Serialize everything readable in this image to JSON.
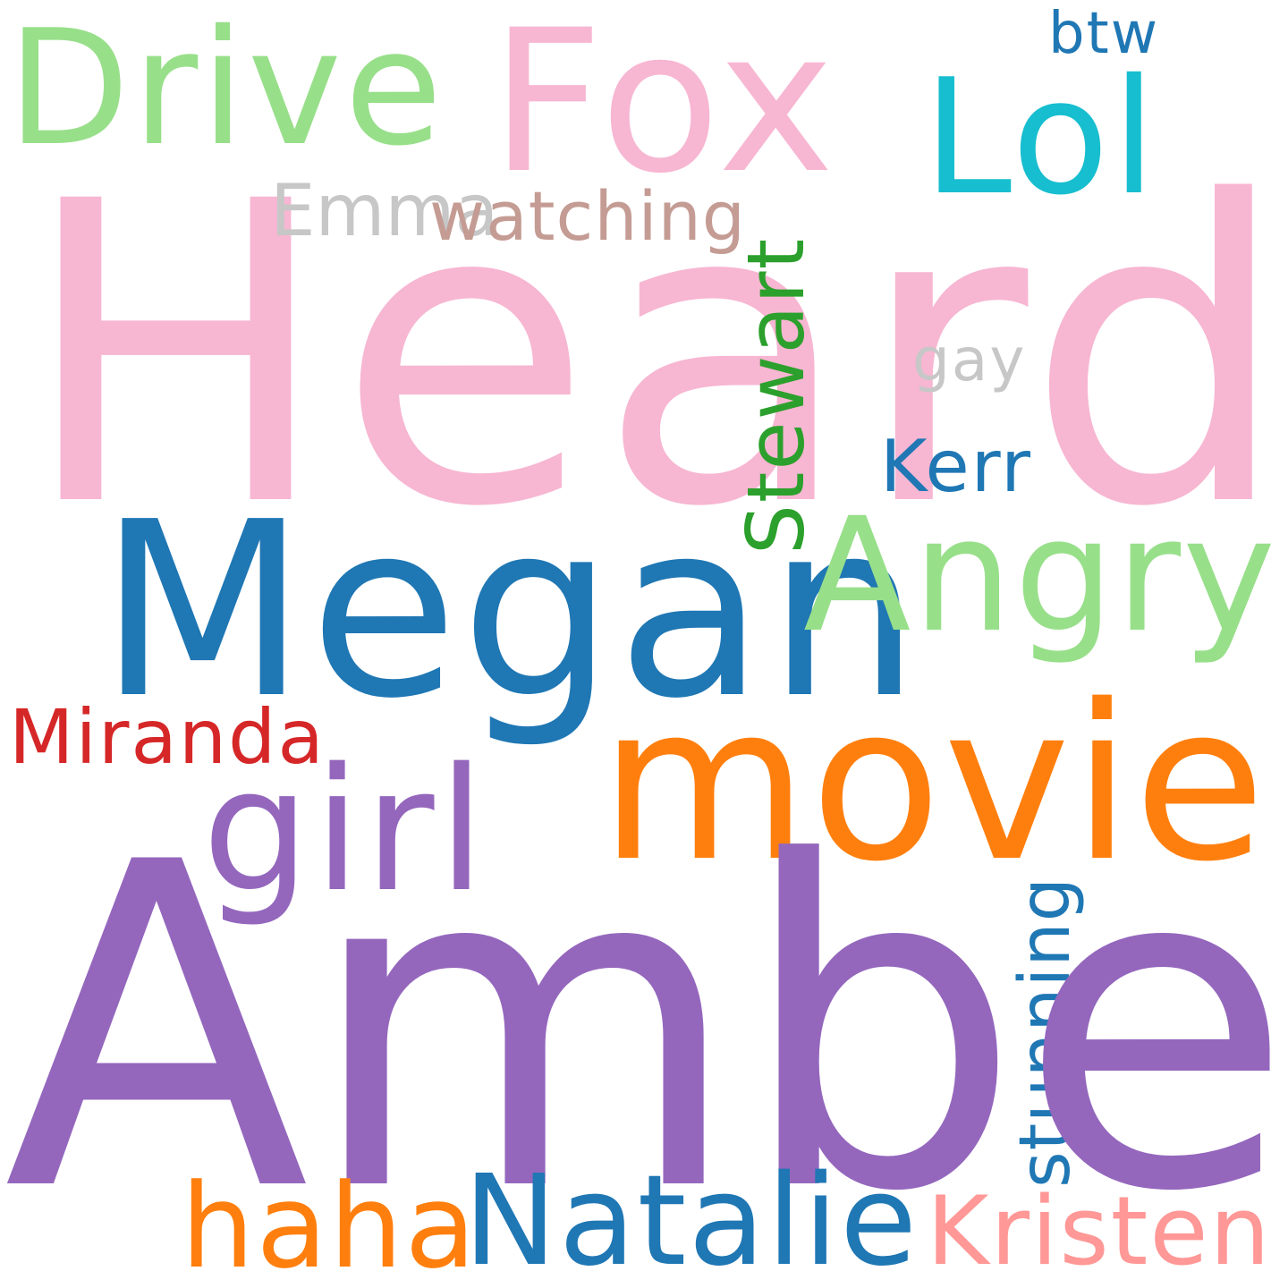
{
  "words": {
    "heard": {
      "text": "Heard",
      "color": "#f7b6d2"
    },
    "amber": {
      "text": "Amber",
      "color": "#9467bd"
    },
    "megan": {
      "text": "Megan",
      "color": "#1f77b4"
    },
    "movie": {
      "text": "movie",
      "color": "#ff7f0e"
    },
    "fox": {
      "text": "Fox",
      "color": "#f7b6d2"
    },
    "drive": {
      "text": "Drive",
      "color": "#98df8a"
    },
    "lol": {
      "text": "Lol",
      "color": "#17becf"
    },
    "angry": {
      "text": "Angry",
      "color": "#98df8a"
    },
    "girl": {
      "text": "girl",
      "color": "#9467bd"
    },
    "natalie": {
      "text": "Natalie",
      "color": "#1f77b4"
    },
    "haha": {
      "text": "haha",
      "color": "#ff7f0e"
    },
    "kristen": {
      "text": "Kristen",
      "color": "#ff9896"
    },
    "miranda": {
      "text": "Miranda",
      "color": "#d62728"
    },
    "stewart": {
      "text": "Stewart",
      "color": "#2ca02c"
    },
    "stunning": {
      "text": "stunning",
      "color": "#1f77b4"
    },
    "emma": {
      "text": "Emma",
      "color": "#c7c7c7"
    },
    "watching": {
      "text": "watching",
      "color": "#c49c94"
    },
    "kerr": {
      "text": "Kerr",
      "color": "#1f77b4"
    },
    "gay": {
      "text": "gay",
      "color": "#c7c7c7"
    },
    "btw": {
      "text": "btw",
      "color": "#1f77b4"
    }
  }
}
